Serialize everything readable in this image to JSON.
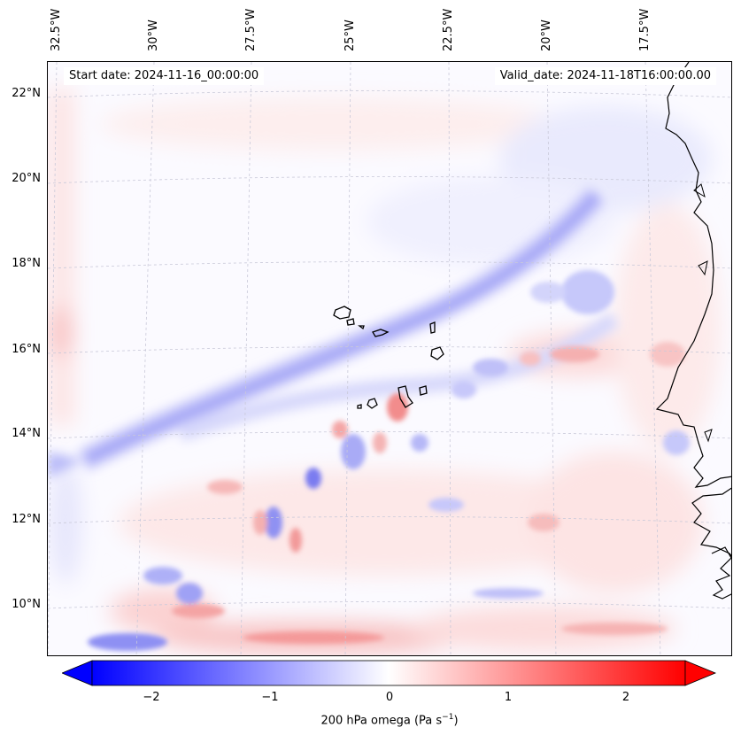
{
  "header": {
    "start_date": "Start date: 2024-11-16_00:00:00",
    "valid_date": "Valid_date: 2024-11-18T16:00:00.00"
  },
  "axes": {
    "longitude_labels": [
      "32.5°W",
      "30°W",
      "27.5°W",
      "25°W",
      "22.5°W",
      "20°W",
      "17.5°W"
    ],
    "latitude_labels": [
      "22°N",
      "20°N",
      "18°N",
      "16°N",
      "14°N",
      "12°N",
      "10°N"
    ]
  },
  "colorbar": {
    "ticks": [
      "−2",
      "−1",
      "0",
      "1",
      "2"
    ],
    "label_main": "200 hPa omega (Pa s",
    "label_exp": "−1",
    "label_end": ")",
    "min_color": "#0000ff",
    "mid_color": "#ffffff",
    "max_color": "#ff0000",
    "range": [
      -2.6,
      2.6
    ]
  },
  "map": {
    "projection_style": "conic, tilted graticule",
    "gridlines": true,
    "coastline_color": "#000000",
    "features": [
      "West African coastline",
      "Cabo Verde islands",
      "blue omega band SW-NE",
      "red/blue noise pattern"
    ]
  }
}
